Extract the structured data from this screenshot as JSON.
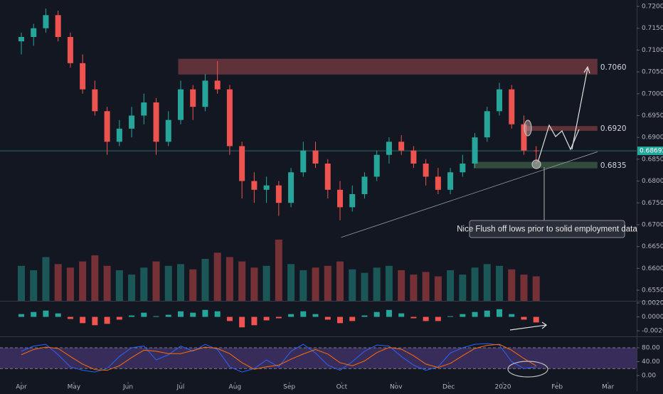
{
  "chart_data": [
    {
      "type": "candlestick",
      "x": [
        0,
        1,
        2,
        3,
        4,
        5,
        6,
        7,
        8,
        9,
        10,
        11,
        12,
        13,
        14,
        15,
        16,
        17,
        18,
        19,
        20,
        21,
        22,
        23,
        24,
        25,
        26,
        27,
        28,
        29,
        30,
        31,
        32,
        33,
        34,
        35,
        36,
        37,
        38,
        39,
        40,
        41,
        42
      ],
      "open": [
        0.712,
        0.713,
        0.715,
        0.718,
        0.713,
        0.707,
        0.701,
        0.696,
        0.689,
        0.692,
        0.695,
        0.698,
        0.689,
        0.694,
        0.701,
        0.697,
        0.703,
        0.701,
        0.688,
        0.68,
        0.678,
        0.679,
        0.675,
        0.682,
        0.687,
        0.684,
        0.678,
        0.674,
        0.677,
        0.681,
        0.686,
        0.689,
        0.687,
        0.684,
        0.681,
        0.678,
        0.682,
        0.684,
        0.69,
        0.696,
        0.701,
        0.693,
        0.687
      ],
      "high": [
        0.714,
        0.716,
        0.7195,
        0.719,
        0.714,
        0.709,
        0.703,
        0.697,
        0.694,
        0.697,
        0.7,
        0.699,
        0.696,
        0.703,
        0.702,
        0.7045,
        0.7075,
        0.702,
        0.689,
        0.682,
        0.681,
        0.68,
        0.683,
        0.689,
        0.689,
        0.685,
        0.68,
        0.679,
        0.682,
        0.687,
        0.69,
        0.6905,
        0.688,
        0.685,
        0.683,
        0.683,
        0.686,
        0.691,
        0.697,
        0.7025,
        0.702,
        0.695,
        0.688
      ],
      "low": [
        0.709,
        0.711,
        0.714,
        0.712,
        0.706,
        0.7,
        0.695,
        0.686,
        0.688,
        0.69,
        0.693,
        0.686,
        0.688,
        0.693,
        0.694,
        0.696,
        0.7,
        0.686,
        0.676,
        0.675,
        0.675,
        0.672,
        0.674,
        0.681,
        0.683,
        0.676,
        0.671,
        0.673,
        0.676,
        0.68,
        0.684,
        0.686,
        0.683,
        0.679,
        0.677,
        0.677,
        0.681,
        0.683,
        0.689,
        0.695,
        0.692,
        0.686,
        0.684
      ],
      "close": [
        0.713,
        0.715,
        0.718,
        0.713,
        0.707,
        0.701,
        0.696,
        0.689,
        0.692,
        0.695,
        0.698,
        0.689,
        0.694,
        0.701,
        0.697,
        0.703,
        0.701,
        0.688,
        0.68,
        0.678,
        0.679,
        0.675,
        0.682,
        0.687,
        0.684,
        0.678,
        0.674,
        0.677,
        0.681,
        0.686,
        0.689,
        0.687,
        0.684,
        0.681,
        0.678,
        0.682,
        0.684,
        0.69,
        0.696,
        0.701,
        0.693,
        0.687,
        0.6869
      ],
      "up_color": "#26a69a",
      "down_color": "#ef5350",
      "volume": {
        "values": [
          40,
          35,
          50,
          42,
          38,
          45,
          52,
          40,
          35,
          30,
          38,
          45,
          40,
          42,
          36,
          48,
          55,
          50,
          45,
          38,
          40,
          70,
          42,
          35,
          38,
          40,
          45,
          36,
          32,
          38,
          40,
          35,
          30,
          33,
          28,
          35,
          30,
          38,
          42,
          40,
          36,
          30,
          28
        ],
        "ylim": [
          0,
          100
        ]
      },
      "xlim": [
        -1.74,
        50.2
      ],
      "ylim": [
        0.65256,
        0.72147
      ],
      "yticks": [
        {
          "value": 0.72,
          "label": "0.72000"
        },
        {
          "value": 0.715,
          "label": "0.71500"
        },
        {
          "value": 0.71,
          "label": "0.71000"
        },
        {
          "value": 0.705,
          "label": "0.70500"
        },
        {
          "value": 0.7,
          "label": "0.70000"
        },
        {
          "value": 0.695,
          "label": "0.69500"
        },
        {
          "value": 0.69,
          "label": "0.69000"
        },
        {
          "value": 0.685,
          "label": "0.68500"
        },
        {
          "value": 0.68,
          "label": "0.68000"
        },
        {
          "value": 0.675,
          "label": "0.67500"
        },
        {
          "value": 0.67,
          "label": "0.67000"
        },
        {
          "value": 0.665,
          "label": "0.66500"
        },
        {
          "value": 0.66,
          "label": "0.66000"
        },
        {
          "value": 0.655,
          "label": "0.65500"
        }
      ],
      "levels": [
        {
          "value": 0.706,
          "label": "0.7060",
          "top": 0.708,
          "bottom": 0.7044,
          "from": 12.8,
          "to": 47,
          "color": "#7a3b40"
        },
        {
          "value": 0.692,
          "label": "0.6920",
          "top": 0.6926,
          "bottom": 0.6915,
          "from": 41.2,
          "to": 47,
          "color": "#7a3b40"
        },
        {
          "value": 0.6835,
          "label": "0.6835",
          "top": 0.6844,
          "bottom": 0.6829,
          "from": 36.9,
          "to": 47,
          "color": "#3d5e45"
        }
      ],
      "last_price": {
        "value": 0.68692,
        "label": "0.68692",
        "color": "#26a69a"
      },
      "trendline": {
        "x": [
          26.1,
          47
        ],
        "y": [
          0.6671,
          0.6867
        ]
      },
      "annotation": "Nice Flush off lows prior to solid employment data"
    },
    {
      "type": "bar",
      "values": [
        0.0004,
        0.0007,
        0.0009,
        0.0005,
        -0.0003,
        -0.0009,
        -0.0012,
        -0.001,
        -0.0004,
        0.0002,
        0.0006,
        0.0001,
        0.0003,
        0.0008,
        0.0006,
        0.001,
        0.0008,
        -0.0006,
        -0.0015,
        -0.0012,
        -0.0005,
        -0.0002,
        0.0004,
        0.0008,
        0.0004,
        -0.0004,
        -0.0009,
        -0.0006,
        0.0002,
        0.0007,
        0.001,
        0.0005,
        -0.0002,
        -0.0006,
        -0.0006,
        0.0001,
        0.0004,
        0.0007,
        0.0009,
        0.0011,
        0.0004,
        -0.0004,
        -0.0008
      ],
      "up_color": "#26a69a",
      "down_color": "#ef5350",
      "xlim": [
        -1.74,
        50.2
      ],
      "ylim": [
        -0.0027,
        0.0022
      ],
      "yticks": [
        {
          "value": 0.002,
          "label": "0.00200"
        },
        {
          "value": 0,
          "label": "0.00000"
        },
        {
          "value": -0.002,
          "label": "-0.00200"
        }
      ]
    },
    {
      "type": "line",
      "series": [
        {
          "color": "#2962ff",
          "values": [
            70,
            85,
            90,
            60,
            25,
            15,
            10,
            20,
            55,
            80,
            85,
            45,
            60,
            85,
            70,
            90,
            75,
            25,
            10,
            20,
            45,
            25,
            70,
            90,
            65,
            30,
            15,
            40,
            70,
            88,
            85,
            55,
            30,
            15,
            25,
            65,
            80,
            90,
            92,
            88,
            40,
            20,
            25
          ]
        },
        {
          "color": "#ff6d00",
          "values": [
            60,
            75,
            82,
            78,
            55,
            33,
            17,
            15,
            28,
            52,
            73,
            70,
            63,
            63,
            72,
            82,
            78,
            63,
            37,
            18,
            25,
            30,
            47,
            62,
            75,
            62,
            37,
            28,
            42,
            66,
            81,
            76,
            57,
            33,
            23,
            35,
            57,
            78,
            87,
            90,
            73,
            49,
            28
          ]
        }
      ],
      "band": [
        20,
        80
      ],
      "band_color": "#7e57c2",
      "xlim": [
        -1.74,
        50.2
      ],
      "ylim": [
        -18.5,
        110.8
      ],
      "yticks": [
        {
          "value": 80,
          "label": "80.00"
        },
        {
          "value": 40,
          "label": "40.00"
        },
        {
          "value": 0,
          "label": "0.00"
        }
      ],
      "xticks": [
        {
          "value": 0,
          "label": "Apr"
        },
        {
          "value": 4.29,
          "label": "May"
        },
        {
          "value": 8.71,
          "label": "Jun"
        },
        {
          "value": 13,
          "label": "Jul"
        },
        {
          "value": 17.43,
          "label": "Aug"
        },
        {
          "value": 21.86,
          "label": "Sep"
        },
        {
          "value": 26.14,
          "label": "Oct"
        },
        {
          "value": 30.57,
          "label": "Nov"
        },
        {
          "value": 34.86,
          "label": "Dec"
        },
        {
          "value": 39.29,
          "label": "2020"
        },
        {
          "value": 43.71,
          "label": "Feb"
        },
        {
          "value": 47.86,
          "label": "Mar"
        }
      ]
    }
  ]
}
